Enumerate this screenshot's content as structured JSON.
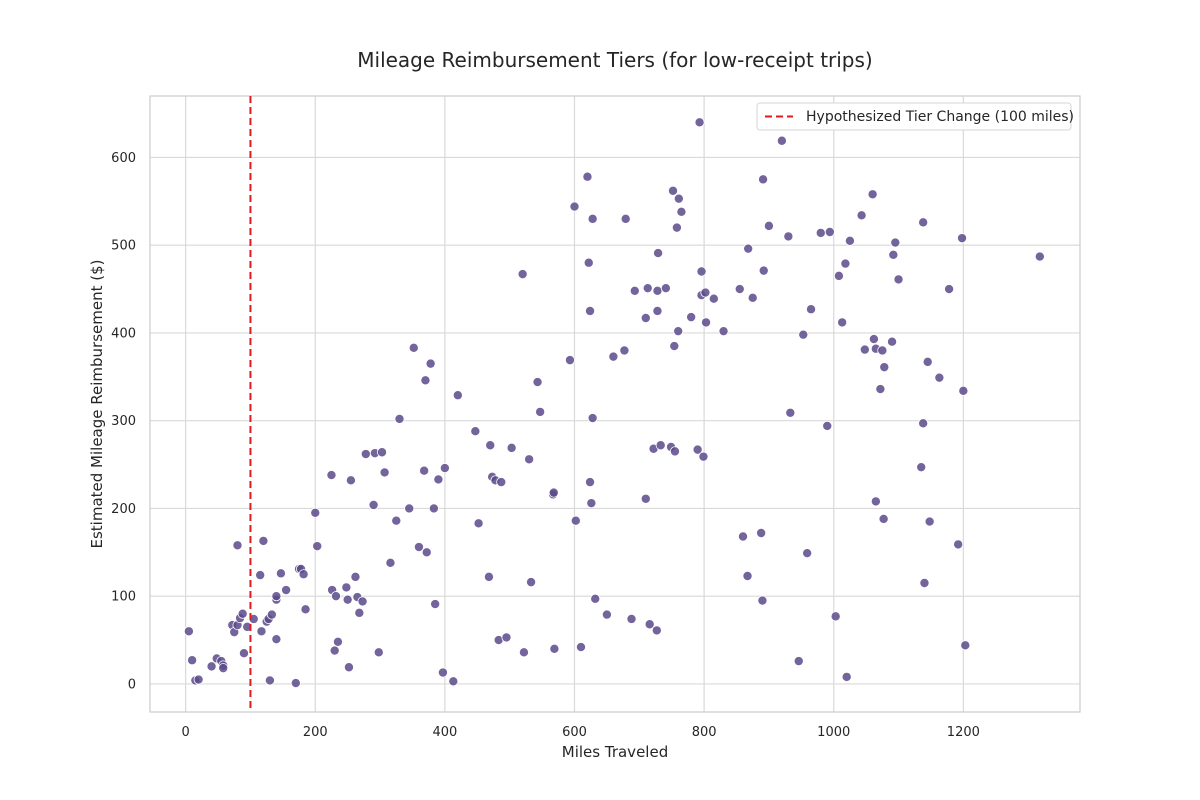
{
  "chart_data": {
    "type": "scatter",
    "title": "Mileage Reimbursement Tiers (for low-receipt trips)",
    "xlabel": "Miles Traveled",
    "ylabel": "Estimated Mileage Reimbursement ($)",
    "xlim": [
      -55,
      1380
    ],
    "ylim": [
      -32,
      670
    ],
    "xticks": [
      0,
      200,
      400,
      600,
      800,
      1000,
      1200
    ],
    "yticks": [
      0,
      100,
      200,
      300,
      400,
      500,
      600
    ],
    "xtick_labels": [
      "0",
      "200",
      "400",
      "600",
      "800",
      "1000",
      "1200"
    ],
    "ytick_labels": [
      "0",
      "100",
      "200",
      "300",
      "400",
      "500",
      "600"
    ],
    "grid": true,
    "point_color": "#5b4a8b",
    "reference_line": {
      "x": 100,
      "label": "Hypothesized Tier Change (100 miles)",
      "color": "#e31a1c",
      "style": "dashed"
    },
    "legend_position": "top-right",
    "points": [
      [
        5,
        60
      ],
      [
        10,
        27
      ],
      [
        15,
        4
      ],
      [
        20,
        5
      ],
      [
        40,
        20
      ],
      [
        48,
        29
      ],
      [
        55,
        26
      ],
      [
        58,
        21
      ],
      [
        58,
        18
      ],
      [
        72,
        67
      ],
      [
        75,
        59
      ],
      [
        80,
        67
      ],
      [
        80,
        158
      ],
      [
        84,
        75
      ],
      [
        88,
        80
      ],
      [
        90,
        35
      ],
      [
        95,
        65
      ],
      [
        105,
        74
      ],
      [
        115,
        124
      ],
      [
        117,
        60
      ],
      [
        120,
        163
      ],
      [
        125,
        71
      ],
      [
        128,
        74
      ],
      [
        130,
        4
      ],
      [
        133,
        79
      ],
      [
        140,
        51
      ],
      [
        140,
        96
      ],
      [
        140,
        100
      ],
      [
        147,
        126
      ],
      [
        155,
        107
      ],
      [
        170,
        1
      ],
      [
        175,
        131
      ],
      [
        178,
        131
      ],
      [
        182,
        125
      ],
      [
        185,
        85
      ],
      [
        200,
        195
      ],
      [
        203,
        157
      ],
      [
        225,
        238
      ],
      [
        226,
        107
      ],
      [
        230,
        38
      ],
      [
        232,
        100
      ],
      [
        235,
        48
      ],
      [
        248,
        110
      ],
      [
        250,
        96
      ],
      [
        252,
        19
      ],
      [
        255,
        232
      ],
      [
        262,
        122
      ],
      [
        265,
        99
      ],
      [
        268,
        81
      ],
      [
        273,
        94
      ],
      [
        278,
        262
      ],
      [
        290,
        204
      ],
      [
        292,
        263
      ],
      [
        298,
        36
      ],
      [
        303,
        264
      ],
      [
        307,
        241
      ],
      [
        316,
        138
      ],
      [
        325,
        186
      ],
      [
        330,
        302
      ],
      [
        345,
        200
      ],
      [
        352,
        383
      ],
      [
        360,
        156
      ],
      [
        368,
        243
      ],
      [
        370,
        346
      ],
      [
        372,
        150
      ],
      [
        378,
        365
      ],
      [
        383,
        200
      ],
      [
        385,
        91
      ],
      [
        390,
        233
      ],
      [
        397,
        13
      ],
      [
        400,
        246
      ],
      [
        413,
        3
      ],
      [
        420,
        329
      ],
      [
        447,
        288
      ],
      [
        452,
        183
      ],
      [
        468,
        122
      ],
      [
        470,
        272
      ],
      [
        473,
        236
      ],
      [
        478,
        232
      ],
      [
        483,
        50
      ],
      [
        487,
        230
      ],
      [
        495,
        53
      ],
      [
        503,
        269
      ],
      [
        520,
        467
      ],
      [
        522,
        36
      ],
      [
        530,
        256
      ],
      [
        533,
        116
      ],
      [
        543,
        344
      ],
      [
        547,
        310
      ],
      [
        567,
        216
      ],
      [
        568,
        218
      ],
      [
        569,
        40
      ],
      [
        593,
        369
      ],
      [
        600,
        544
      ],
      [
        602,
        186
      ],
      [
        610,
        42
      ],
      [
        620,
        578
      ],
      [
        622,
        480
      ],
      [
        624,
        425
      ],
      [
        624,
        230
      ],
      [
        626,
        206
      ],
      [
        628,
        530
      ],
      [
        628,
        303
      ],
      [
        632,
        97
      ],
      [
        650,
        79
      ],
      [
        660,
        373
      ],
      [
        677,
        380
      ],
      [
        679,
        530
      ],
      [
        688,
        74
      ],
      [
        693,
        448
      ],
      [
        710,
        211
      ],
      [
        710,
        417
      ],
      [
        713,
        451
      ],
      [
        716,
        68
      ],
      [
        722,
        268
      ],
      [
        727,
        61
      ],
      [
        728,
        425
      ],
      [
        728,
        448
      ],
      [
        729,
        491
      ],
      [
        733,
        272
      ],
      [
        741,
        451
      ],
      [
        749,
        270
      ],
      [
        752,
        562
      ],
      [
        754,
        385
      ],
      [
        755,
        265
      ],
      [
        758,
        520
      ],
      [
        760,
        402
      ],
      [
        761,
        553
      ],
      [
        765,
        538
      ],
      [
        780,
        418
      ],
      [
        790,
        267
      ],
      [
        793,
        640
      ],
      [
        796,
        470
      ],
      [
        796,
        443
      ],
      [
        799,
        259
      ],
      [
        802,
        446
      ],
      [
        803,
        412
      ],
      [
        815,
        439
      ],
      [
        830,
        402
      ],
      [
        855,
        450
      ],
      [
        860,
        168
      ],
      [
        867,
        123
      ],
      [
        868,
        496
      ],
      [
        875,
        440
      ],
      [
        888,
        172
      ],
      [
        890,
        95
      ],
      [
        891,
        575
      ],
      [
        892,
        471
      ],
      [
        900,
        522
      ],
      [
        920,
        619
      ],
      [
        930,
        510
      ],
      [
        933,
        309
      ],
      [
        946,
        26
      ],
      [
        953,
        398
      ],
      [
        959,
        149
      ],
      [
        965,
        427
      ],
      [
        980,
        514
      ],
      [
        990,
        294
      ],
      [
        994,
        515
      ],
      [
        1003,
        77
      ],
      [
        1008,
        465
      ],
      [
        1013,
        412
      ],
      [
        1018,
        479
      ],
      [
        1020,
        8
      ],
      [
        1025,
        505
      ],
      [
        1043,
        534
      ],
      [
        1048,
        381
      ],
      [
        1060,
        558
      ],
      [
        1062,
        393
      ],
      [
        1065,
        208
      ],
      [
        1065,
        382
      ],
      [
        1072,
        336
      ],
      [
        1075,
        380
      ],
      [
        1077,
        188
      ],
      [
        1078,
        361
      ],
      [
        1090,
        390
      ],
      [
        1092,
        489
      ],
      [
        1095,
        503
      ],
      [
        1100,
        461
      ],
      [
        1135,
        247
      ],
      [
        1138,
        526
      ],
      [
        1138,
        297
      ],
      [
        1140,
        115
      ],
      [
        1145,
        367
      ],
      [
        1148,
        185
      ],
      [
        1163,
        349
      ],
      [
        1178,
        450
      ],
      [
        1192,
        159
      ],
      [
        1198,
        508
      ],
      [
        1200,
        334
      ],
      [
        1203,
        44
      ],
      [
        1318,
        487
      ]
    ]
  }
}
